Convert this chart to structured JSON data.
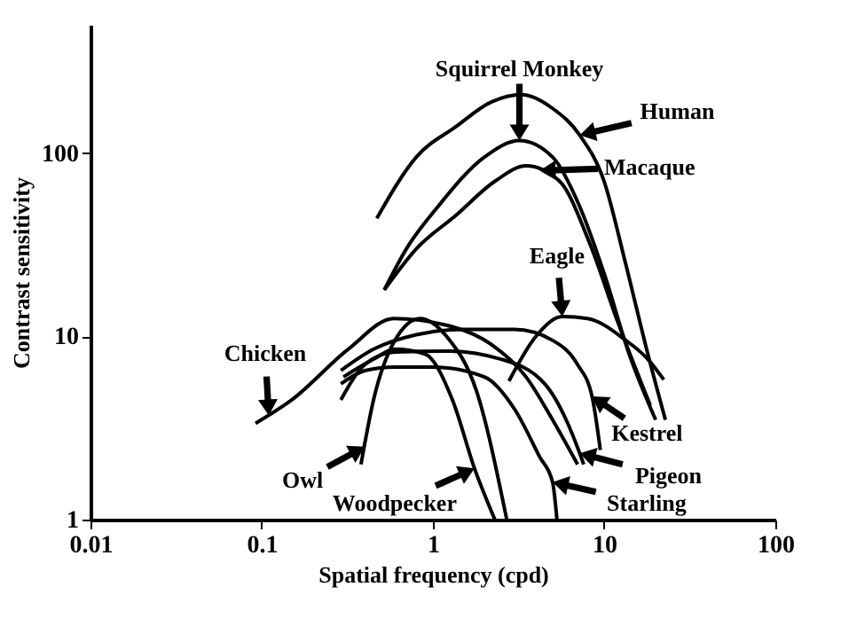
{
  "chart_data": {
    "type": "line",
    "xlabel": "Spatial frequency (cpd)",
    "ylabel": "Contrast sensitivity",
    "log": "xy",
    "grid": false,
    "legend": false,
    "marker": "none",
    "line_style": "solid",
    "xlim": [
      0.01,
      100
    ],
    "xticks": [
      0.01,
      0.1,
      1,
      10,
      100
    ],
    "ylim": [
      1,
      500
    ],
    "yticks": [
      1,
      10,
      100
    ],
    "series": [
      {
        "color": "#000000",
        "x": [
          0.47,
          0.8,
          1.36,
          2.2,
          3.3,
          5,
          7.2,
          10,
          13.2,
          18,
          22.8
        ],
        "values": [
          44,
          95,
          139,
          190,
          208,
          175,
          125,
          70,
          26,
          8,
          3.5
        ]
      },
      {
        "color": "#000000",
        "x": [
          0.52,
          0.7,
          1.07,
          2,
          3.2,
          5,
          7.2,
          10,
          14,
          20
        ],
        "values": [
          17.9,
          30,
          51,
          95,
          117,
          95,
          51,
          22,
          8,
          3.5
        ]
      },
      {
        "color": "#000000",
        "x": [
          0.52,
          0.8,
          1.36,
          2.3,
          3.5,
          5.5,
          8.2,
          12,
          18.6
        ],
        "values": [
          17.9,
          30,
          45.6,
          70,
          85,
          70,
          32.5,
          12,
          4.2
        ]
      },
      {
        "color": "#000000",
        "x": [
          2.78,
          4,
          5.7,
          8,
          13.2,
          18,
          22.3
        ],
        "values": [
          5.7,
          10,
          12.8,
          12.5,
          9.6,
          7.5,
          5.8
        ]
      },
      {
        "color": "#000000",
        "x": [
          0.092,
          0.15,
          0.32,
          0.59,
          1.2,
          2.2,
          3.5,
          5,
          7
        ],
        "values": [
          3.35,
          4.5,
          8.5,
          12.5,
          11.5,
          9,
          6,
          3.5,
          2
        ]
      },
      {
        "color": "#000000",
        "x": [
          0.29,
          0.45,
          0.8,
          1.5,
          3,
          5,
          7,
          8.5,
          9.5
        ],
        "values": [
          6.5,
          8.5,
          10.2,
          10.9,
          10.9,
          9.5,
          7,
          4.7,
          2.4
        ]
      },
      {
        "color": "#000000",
        "x": [
          0.29,
          0.4,
          0.6,
          1.2,
          2.5,
          4.5,
          6,
          7.2,
          7.6
        ],
        "values": [
          4.5,
          7,
          8.2,
          8.3,
          7.5,
          5.5,
          3.5,
          2.3,
          2
        ]
      },
      {
        "color": "#000000",
        "x": [
          0.29,
          0.4,
          0.6,
          1,
          2,
          3,
          4.2,
          5,
          5.3
        ],
        "values": [
          5.5,
          6.5,
          6.8,
          6.8,
          6,
          4,
          2.2,
          1.6,
          1
        ]
      },
      {
        "color": "#000000",
        "x": [
          0.38,
          0.45,
          0.6,
          0.84,
          1.2,
          1.8,
          2.7
        ],
        "values": [
          2,
          4.5,
          9.5,
          12.5,
          10,
          5,
          1
        ]
      },
      {
        "color": "#000000",
        "x": [
          0.3,
          0.45,
          0.6,
          0.9,
          1.3,
          1.75,
          2.3
        ],
        "values": [
          6,
          7.5,
          8.5,
          8,
          4.5,
          1.9,
          1
        ]
      }
    ],
    "annotations": [
      {
        "text": "Squirrel Monkey",
        "x": 3.2,
        "y": 117
      },
      {
        "text": "Human",
        "x": 7.2,
        "y": 125
      },
      {
        "text": "Macaque",
        "x": 4.2,
        "y": 80
      },
      {
        "text": "Eagle",
        "x": 5.7,
        "y": 12.8
      },
      {
        "text": "Chicken",
        "x": 0.11,
        "y": 3.7
      },
      {
        "text": "Kestrel",
        "x": 8.5,
        "y": 4.7
      },
      {
        "text": "Owl",
        "x": 0.4,
        "y": 2.5
      },
      {
        "text": "Pigeon",
        "x": 7.2,
        "y": 2.3
      },
      {
        "text": "Woodpecker",
        "x": 1.75,
        "y": 1.9
      },
      {
        "text": "Starling",
        "x": 5,
        "y": 1.6
      }
    ]
  }
}
